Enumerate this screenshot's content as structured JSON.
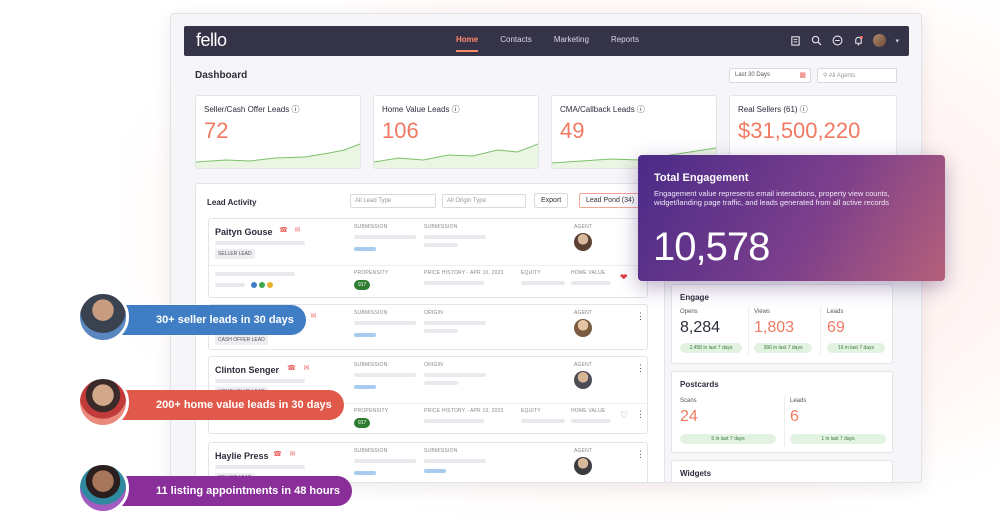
{
  "app": {
    "logo": "fello",
    "nav": [
      "Home",
      "Contacts",
      "Marketing",
      "Reports"
    ],
    "active_nav": "Home",
    "top_icons": [
      "building-icon",
      "search-icon",
      "minus-circle-icon",
      "bell-icon",
      "avatar",
      "chevron-down-icon"
    ]
  },
  "dashboard": {
    "title": "Dashboard",
    "date_range": "Last 30 Days",
    "agents_placeholder": "All Agents"
  },
  "stats": [
    {
      "label": "Seller/Cash Offer Leads ⓘ",
      "value": "72"
    },
    {
      "label": "Home Value Leads ⓘ",
      "value": "106"
    },
    {
      "label": "CMA/Callback Leads ⓘ",
      "value": "49"
    },
    {
      "label": "Real Sellers (61) ⓘ",
      "value": "$31,500,220"
    }
  ],
  "lead_activity": {
    "title": "Lead Activity",
    "filter_lead_type": "All Lead Type",
    "filter_origin_type": "All Origin Type",
    "export_label": "Export",
    "lead_pond_label": "Lead Pond (34)",
    "leads": [
      {
        "name": "Paityn Gouse",
        "tag": "SELLER LEAD",
        "col1": "SUBMISSION",
        "col2": "SUBMISSION",
        "agent": "AGENT",
        "row2": {
          "propensity": "PROPENSITY",
          "badge": "917",
          "price": "PRICE HISTORY - APR 10, 2023",
          "equity": "EQUITY",
          "home": "HOME VALUE"
        }
      },
      {
        "name": "",
        "tag": "CASH OFFER LEAD",
        "col1": "SUBMISSION",
        "col2": "ORIGIN",
        "agent": "AGENT"
      },
      {
        "name": "Clinton Senger",
        "tag": "HOME VALUE LEAD",
        "col1": "SUBMISSION",
        "col2": "ORIGIN",
        "agent": "AGENT",
        "row2": {
          "propensity": "PROPENSITY",
          "badge": "917",
          "price": "PRICE HISTORY - APR 10, 2023",
          "equity": "EQUITY",
          "home": "HOME VALUE"
        }
      },
      {
        "name": "Haylie Press",
        "tag": "SELLER LEAD",
        "col1": "SUBMISSION",
        "col2": "SUBMISSION",
        "agent": "AGENT"
      }
    ]
  },
  "engagement": {
    "title": "Total Engagement",
    "description": "Engagement value represents email interactions, property view counts, widget/landing page traffic, and leads generated from all active records",
    "value": "10,578"
  },
  "engage": {
    "title": "Engage",
    "metrics": [
      {
        "label": "Opens",
        "value": "8,284",
        "pill": "2,458 in last 7 days",
        "color": "#2b2d3a"
      },
      {
        "label": "Views",
        "value": "1,803",
        "pill": "386 in last 7 days",
        "color": "#f07a62"
      },
      {
        "label": "Leads",
        "value": "69",
        "pill": "16 in last 7 days",
        "color": "#f07a62"
      }
    ]
  },
  "postcards": {
    "title": "Postcards",
    "metrics": [
      {
        "label": "Scans",
        "value": "24",
        "pill": "5 in last 7 days"
      },
      {
        "label": "Leads",
        "value": "6",
        "pill": "1 in last 7 days"
      }
    ]
  },
  "widgets": {
    "title": "Widgets"
  },
  "callouts": [
    {
      "text": "30+ seller leads in 30 days",
      "color": "#3f7dc4"
    },
    {
      "text": "200+ home value leads in 30 days",
      "color": "#e0594a"
    },
    {
      "text": "11 listing appointments in 48 hours",
      "color": "#8a2f9a"
    }
  ]
}
